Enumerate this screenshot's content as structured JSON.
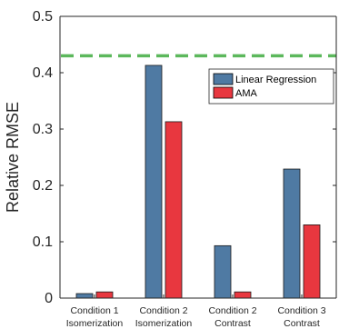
{
  "chart_data": {
    "type": "bar",
    "categories": [
      {
        "line1": "Condition 1",
        "line2": "Isomerization"
      },
      {
        "line1": "Condition 2",
        "line2": "Isomerization"
      },
      {
        "line1": "Condition 2",
        "line2": "Contrast"
      },
      {
        "line1": "Condition 3",
        "line2": "Contrast"
      }
    ],
    "series": [
      {
        "name": "Linear Regression",
        "color": "#4f7aa3",
        "values": [
          0.008,
          0.413,
          0.093,
          0.229
        ]
      },
      {
        "name": "AMA",
        "color": "#e8373f",
        "values": [
          0.011,
          0.313,
          0.011,
          0.13
        ]
      }
    ],
    "reference_line": {
      "value": 0.43,
      "color": "#5cb85c",
      "style": "dashed"
    },
    "xlabel": "",
    "ylabel": "Relative RMSE",
    "ylim": [
      0,
      0.5
    ],
    "yticks": [
      0,
      0.1,
      0.2,
      0.3,
      0.4,
      0.5
    ],
    "ytick_labels": [
      "0",
      "0.1",
      "0.2",
      "0.3",
      "0.4",
      "0.5"
    ],
    "legend_position": "top-right",
    "grid": false
  }
}
